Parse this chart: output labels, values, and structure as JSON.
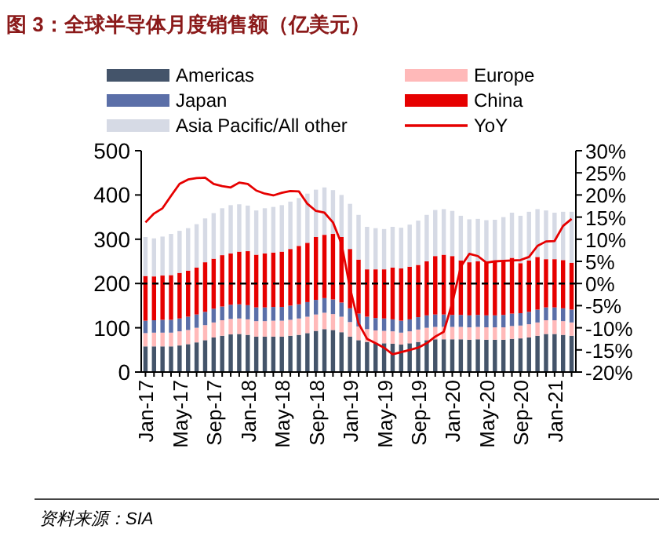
{
  "chart_data": {
    "type": "bar",
    "title": "图 3：全球半导体月度销售额（亿美元）",
    "categories": [
      "Jan-17",
      null,
      null,
      null,
      "May-17",
      null,
      null,
      null,
      "Sep-17",
      null,
      null,
      null,
      "Jan-18",
      null,
      null,
      null,
      "May-18",
      null,
      null,
      null,
      "Sep-18",
      null,
      null,
      null,
      "Jan-19",
      null,
      null,
      null,
      "May-19",
      null,
      null,
      null,
      "Sep-19",
      null,
      null,
      null,
      "Jan-20",
      null,
      null,
      null,
      "May-20",
      null,
      null,
      null,
      "Sep-20",
      null,
      null,
      null,
      "Jan-21",
      null,
      null
    ],
    "stacked": true,
    "series": [
      {
        "name": "Americas",
        "color": "#44546a",
        "values": [
          58,
          58,
          58,
          58,
          60,
          63,
          67,
          72,
          78,
          82,
          85,
          86,
          84,
          80,
          80,
          80,
          80,
          82,
          84,
          88,
          93,
          97,
          95,
          90,
          80,
          72,
          68,
          66,
          65,
          64,
          62,
          65,
          68,
          72,
          74,
          74,
          74,
          74,
          73,
          74,
          73,
          73,
          73,
          75,
          76,
          78,
          82,
          86,
          86,
          84,
          82
        ]
      },
      {
        "name": "Europe",
        "color": "#ffb9b9",
        "values": [
          30,
          31,
          31,
          31,
          32,
          32,
          33,
          34,
          34,
          35,
          35,
          35,
          35,
          35,
          35,
          36,
          36,
          36,
          37,
          37,
          37,
          37,
          36,
          35,
          33,
          31,
          29,
          28,
          28,
          28,
          27,
          27,
          28,
          28,
          28,
          28,
          28,
          28,
          28,
          28,
          28,
          28,
          28,
          29,
          29,
          30,
          30,
          31,
          31,
          31,
          30
        ]
      },
      {
        "name": "Japan",
        "color": "#5b6fa8",
        "values": [
          28,
          28,
          29,
          29,
          29,
          30,
          30,
          30,
          31,
          31,
          32,
          32,
          32,
          31,
          31,
          31,
          31,
          32,
          32,
          33,
          33,
          33,
          33,
          32,
          31,
          29,
          28,
          28,
          28,
          27,
          27,
          27,
          28,
          28,
          28,
          28,
          27,
          27,
          27,
          27,
          27,
          27,
          28,
          28,
          28,
          28,
          29,
          29,
          29,
          29,
          29
        ]
      },
      {
        "name": "China",
        "color": "#e60000",
        "values": [
          101,
          99,
          100,
          101,
          103,
          104,
          106,
          112,
          113,
          116,
          116,
          119,
          122,
          119,
          122,
          123,
          125,
          128,
          132,
          134,
          142,
          143,
          148,
          148,
          134,
          122,
          107,
          110,
          111,
          117,
          118,
          119,
          118,
          122,
          132,
          135,
          133,
          123,
          120,
          121,
          120,
          122,
          123,
          126,
          113,
          116,
          119,
          109,
          109,
          109,
          106
        ]
      },
      {
        "name": "Asia Pacific/All other",
        "color": "#d6dae5",
        "values": [
          88,
          86,
          88,
          93,
          95,
          96,
          98,
          99,
          103,
          106,
          109,
          107,
          103,
          100,
          102,
          103,
          105,
          107,
          108,
          111,
          107,
          107,
          99,
          95,
          102,
          101,
          96,
          93,
          91,
          92,
          92,
          95,
          100,
          105,
          104,
          103,
          102,
          101,
          97,
          96,
          95,
          94,
          98,
          102,
          107,
          110,
          108,
          110,
          105,
          109,
          115
        ]
      },
      {
        "name": "YoY",
        "type": "line",
        "axis": "y2",
        "color": "#e60000",
        "values": [
          13.8,
          15.8,
          17.0,
          19.8,
          22.5,
          23.5,
          23.8,
          23.9,
          22.5,
          22.0,
          21.7,
          22.8,
          22.5,
          21.0,
          20.3,
          19.9,
          20.5,
          20.9,
          20.8,
          18.0,
          16.4,
          16.0,
          13.8,
          9.0,
          -1.0,
          -9.0,
          -12.5,
          -13.5,
          -14.5,
          -16.0,
          -15.5,
          -15.0,
          -14.5,
          -13.5,
          -12.0,
          -10.9,
          -4.4,
          3.8,
          6.7,
          6.2,
          4.7,
          5.0,
          5.1,
          5.2,
          5.3,
          6.0,
          8.5,
          9.5,
          9.6,
          13.0,
          14.6
        ]
      }
    ],
    "ylim": [
      0,
      500
    ],
    "yticks": [
      0,
      100,
      200,
      300,
      400,
      500
    ],
    "y2lim": [
      -20,
      30
    ],
    "y2ticks": [
      {
        "value": -20,
        "label": "-20%"
      },
      {
        "value": -15,
        "label": "-15%"
      },
      {
        "value": -10,
        "label": "-10%"
      },
      {
        "value": -5,
        "label": "-5%"
      },
      {
        "value": 0,
        "label": "0%"
      },
      {
        "value": 5,
        "label": "5%"
      },
      {
        "value": 10,
        "label": "10%"
      },
      {
        "value": 15,
        "label": "15%"
      },
      {
        "value": 20,
        "label": "20%"
      },
      {
        "value": 25,
        "label": "25%"
      },
      {
        "value": 30,
        "label": "30%"
      }
    ],
    "ref_lines": [
      {
        "axis": "y2",
        "value": 0,
        "color": "#000000",
        "line_style": "dashed"
      }
    ],
    "legend": "top",
    "grid": false,
    "annotations": [
      "资料来源：SIA"
    ]
  }
}
